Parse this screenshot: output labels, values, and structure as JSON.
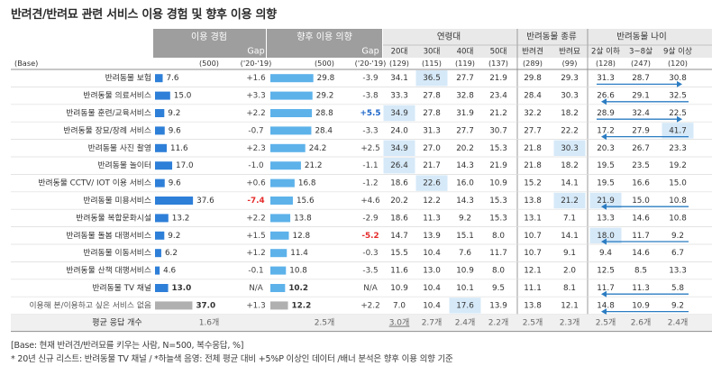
{
  "title": "반려견/반려묘 관련 서비스 이용 경험 및 향후 이용 의향",
  "chart_data": {
    "type": "table",
    "base_label": "(Base)",
    "groups": {
      "usage_exp": "이용 경험",
      "future_intent": "향후 이용 의향",
      "age": "연령대",
      "pet_type": "반려동물 종류",
      "pet_age": "반려동물 나이"
    },
    "gap_label": "Gap",
    "columns": [
      {
        "key": "exp",
        "base": "(500)"
      },
      {
        "key": "exp_gap",
        "base": "('20-'19)"
      },
      {
        "key": "int",
        "base": "(500)"
      },
      {
        "key": "int_gap",
        "base": "('20-'19)"
      },
      {
        "key": "a20",
        "header": "20대",
        "base": "(129)"
      },
      {
        "key": "a30",
        "header": "30대",
        "base": "(115)"
      },
      {
        "key": "a40",
        "header": "40대",
        "base": "(119)"
      },
      {
        "key": "a50",
        "header": "50대",
        "base": "(137)"
      },
      {
        "key": "dog",
        "header": "반려견",
        "base": "(289)"
      },
      {
        "key": "cat",
        "header": "반려묘",
        "base": "(99)"
      },
      {
        "key": "p2",
        "header": "2살 이하",
        "base": "(128)"
      },
      {
        "key": "p38",
        "header": "3~8살",
        "base": "(247)"
      },
      {
        "key": "p9",
        "header": "9살 이상",
        "base": "(120)"
      }
    ],
    "rows": [
      {
        "label": "반려동물 보험",
        "exp": 7.6,
        "exp_text": "7.6",
        "exp_gap": "+1.6",
        "int": 29.8,
        "int_text": "29.8",
        "int_gap": "-3.9",
        "cells": [
          "34.1",
          "36.5",
          "27.7",
          "21.9",
          "29.8",
          "29.3",
          "31.3",
          "28.7",
          "30.8"
        ]
      },
      {
        "label": "반려동물 의료서비스",
        "exp": 15.0,
        "exp_text": "15.0",
        "exp_gap": "+3.3",
        "int": 29.2,
        "int_text": "29.2",
        "int_gap": "-3.8",
        "cells": [
          "33.3",
          "27.8",
          "32.8",
          "23.4",
          "28.4",
          "30.3",
          "26.6",
          "29.1",
          "32.5"
        ]
      },
      {
        "label": "반려동물 훈련/교육서비스",
        "exp": 9.2,
        "exp_text": "9.2",
        "exp_gap": "+2.2",
        "int": 28.8,
        "int_text": "28.8",
        "int_gap": "+5.5",
        "cells": [
          "34.9",
          "27.8",
          "31.9",
          "21.2",
          "32.2",
          "18.2",
          "28.9",
          "32.4",
          "22.5"
        ]
      },
      {
        "label": "반려동물 장묘/장례 서비스",
        "exp": 9.6,
        "exp_text": "9.6",
        "exp_gap": "-0.7",
        "int": 28.4,
        "int_text": "28.4",
        "int_gap": "-3.3",
        "cells": [
          "24.0",
          "31.3",
          "27.7",
          "30.7",
          "27.7",
          "22.2",
          "17.2",
          "27.9",
          "41.7"
        ]
      },
      {
        "label": "반려동물 사진 촬영",
        "exp": 11.6,
        "exp_text": "11.6",
        "exp_gap": "+2.3",
        "int": 24.2,
        "int_text": "24.2",
        "int_gap": "+2.5",
        "cells": [
          "34.9",
          "27.0",
          "20.2",
          "15.3",
          "21.8",
          "30.3",
          "20.3",
          "26.7",
          "23.3"
        ]
      },
      {
        "label": "반려동물 놀이터",
        "exp": 17.0,
        "exp_text": "17.0",
        "exp_gap": "-1.0",
        "int": 21.2,
        "int_text": "21.2",
        "int_gap": "-1.1",
        "cells": [
          "26.4",
          "21.7",
          "14.3",
          "21.9",
          "21.8",
          "18.2",
          "19.5",
          "23.5",
          "19.2"
        ]
      },
      {
        "label": "반려동물 CCTV/ IOT 이용 서비스",
        "exp": 9.6,
        "exp_text": "9.6",
        "exp_gap": "+0.6",
        "int": 16.8,
        "int_text": "16.8",
        "int_gap": "-1.2",
        "cells": [
          "18.6",
          "22.6",
          "16.0",
          "10.9",
          "15.2",
          "14.1",
          "19.5",
          "16.6",
          "15.0"
        ]
      },
      {
        "label": "반려동물 미용서비스",
        "exp": 37.6,
        "exp_text": "37.6",
        "exp_gap": "-7.4",
        "int": 15.6,
        "int_text": "15.6",
        "int_gap": "+4.6",
        "cells": [
          "20.2",
          "12.2",
          "14.3",
          "15.3",
          "13.8",
          "21.2",
          "21.9",
          "15.0",
          "10.8"
        ]
      },
      {
        "label": "반려동물 복합문화시설",
        "exp": 13.2,
        "exp_text": "13.2",
        "exp_gap": "+2.2",
        "int": 13.8,
        "int_text": "13.8",
        "int_gap": "-2.9",
        "cells": [
          "18.6",
          "11.3",
          "9.2",
          "15.3",
          "13.1",
          "7.1",
          "13.3",
          "14.6",
          "10.8"
        ]
      },
      {
        "label": "반려동물 돌봄 대행서비스",
        "exp": 9.2,
        "exp_text": "9.2",
        "exp_gap": "+1.5",
        "int": 12.8,
        "int_text": "12.8",
        "int_gap": "-5.2",
        "cells": [
          "14.7",
          "13.9",
          "15.1",
          "8.0",
          "10.7",
          "14.1",
          "18.0",
          "11.7",
          "9.2"
        ]
      },
      {
        "label": "반려동물 이동서비스",
        "exp": 6.2,
        "exp_text": "6.2",
        "exp_gap": "+1.2",
        "int": 11.4,
        "int_text": "11.4",
        "int_gap": "-0.3",
        "cells": [
          "15.5",
          "10.4",
          "7.6",
          "11.7",
          "10.7",
          "9.1",
          "9.4",
          "14.6",
          "6.7"
        ]
      },
      {
        "label": "반려동물 산책 대행서비스",
        "exp": 4.6,
        "exp_text": "4.6",
        "exp_gap": "-0.1",
        "int": 10.8,
        "int_text": "10.8",
        "int_gap": "-3.5",
        "cells": [
          "11.6",
          "13.0",
          "10.9",
          "8.0",
          "12.1",
          "2.0",
          "12.5",
          "8.5",
          "13.3"
        ]
      },
      {
        "label": "반려동물 TV 채널",
        "exp": 13.0,
        "exp_text": "13.0",
        "exp_gap": "N/A",
        "int": 10.2,
        "int_text": "10.2",
        "int_gap": "N/A",
        "cells": [
          "10.9",
          "10.4",
          "10.1",
          "9.5",
          "11.1",
          "8.1",
          "11.7",
          "11.3",
          "5.8"
        ]
      },
      {
        "label": "이용해 본/이용하고 싶은 서비스 없음",
        "exp": 37.0,
        "exp_text": "37.0",
        "exp_gap": "+1.3",
        "int": 12.2,
        "int_text": "12.2",
        "int_gap": "+2.2",
        "cells": [
          "7.0",
          "10.4",
          "17.6",
          "13.9",
          "13.8",
          "12.1",
          "14.8",
          "10.9",
          "9.2"
        ]
      }
    ],
    "average_row": {
      "label": "평균 응답 개수",
      "exp": "1.6개",
      "int": "2.5개",
      "cells": [
        "3.0개",
        "2.7개",
        "2.4개",
        "2.2개",
        "2.5개",
        "2.3개",
        "2.5개",
        "2.6개",
        "2.4개"
      ]
    },
    "highlights": [
      [
        0,
        1
      ],
      [
        2,
        0
      ],
      [
        3,
        8
      ],
      [
        4,
        0
      ],
      [
        4,
        5
      ],
      [
        5,
        0
      ],
      [
        6,
        1
      ],
      [
        7,
        5
      ],
      [
        7,
        6
      ],
      [
        9,
        6
      ],
      [
        13,
        2
      ]
    ],
    "arrows": [
      [
        0,
        8
      ],
      [
        1,
        6
      ],
      [
        2,
        8
      ],
      [
        3,
        6
      ],
      [
        7,
        6
      ],
      [
        9,
        6
      ],
      [
        12,
        6
      ],
      [
        13,
        6
      ]
    ],
    "emphasis": {
      "red": [
        [
          7,
          "exp_gap"
        ],
        [
          9,
          "int_gap"
        ]
      ],
      "blue": [
        [
          2,
          "int_gap"
        ]
      ],
      "bold": [
        12,
        13
      ]
    },
    "colors": {
      "header_dark": "#9e9e9e",
      "header_light": "#e9e9e9",
      "bar_exp": "#2e7fd8",
      "bar_int": "#5db2ea",
      "bar_none": "#b0b0b0",
      "highlight": "#d6e9f8",
      "arrow": "#2b7cc2",
      "red": "#e52b2b",
      "blue": "#1a64c8"
    }
  },
  "footnotes": [
    "[Base: 현재 반려견/반려묘를 키우는 사람, N=500, 복수응답, %]",
    "* 20년 신규 리스트: 반려동물 TV 채널 / *하늘색 음영: 전체 평균 대비 +5%P 이상인 데이터 /배너 분석은 향후 이용 의향 기준"
  ]
}
